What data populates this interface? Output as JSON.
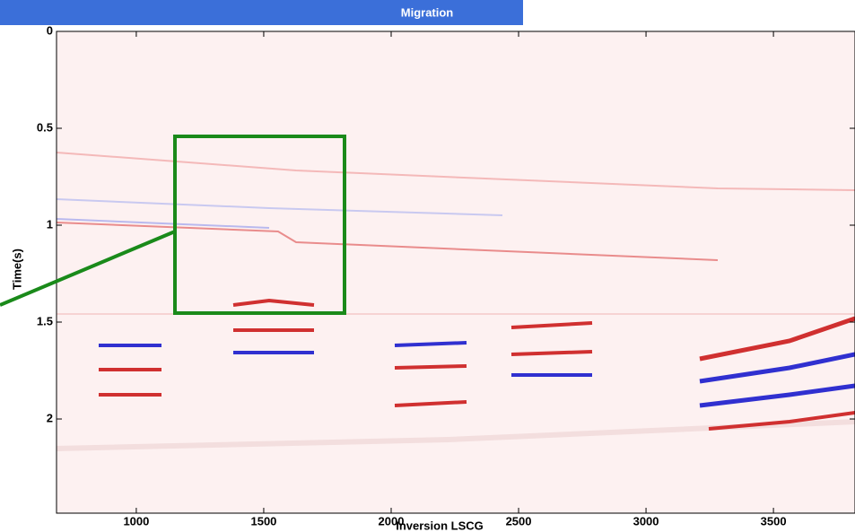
{
  "chart_data": {
    "type": "image",
    "title": "Migration",
    "xlabel": "Inversion LSCG",
    "ylabel": "Time(s)",
    "xlim": [
      687,
      3820
    ],
    "xticks": [
      1000,
      1500,
      2000,
      2500,
      3000,
      3500
    ],
    "ylim": [
      0,
      2.486
    ],
    "yticks": [
      0,
      0.5,
      1,
      1.5,
      2
    ],
    "y_inverted": true
  }
}
